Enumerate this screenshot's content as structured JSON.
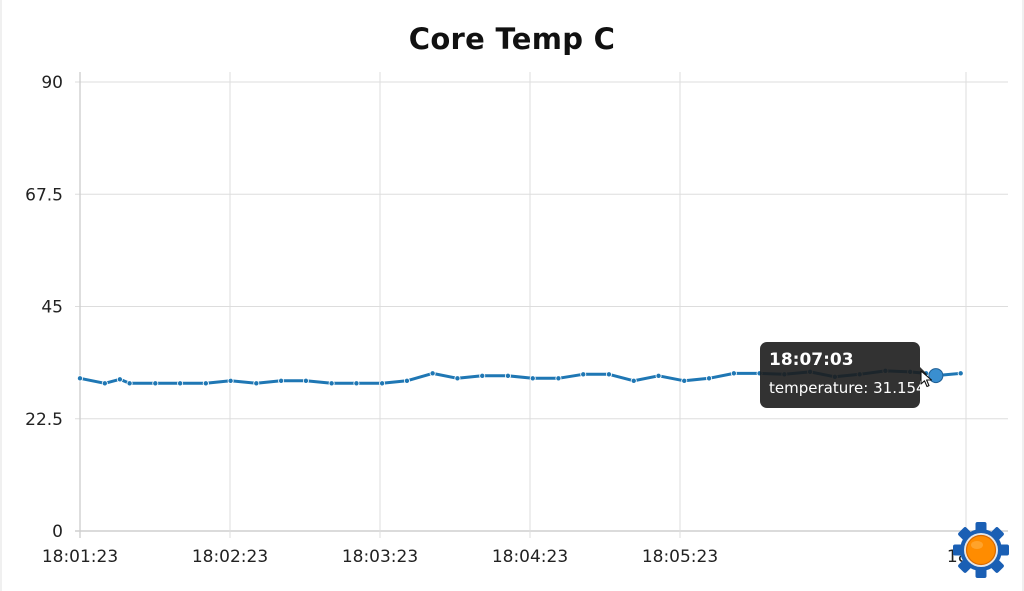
{
  "chart_data": {
    "type": "line",
    "title": "Core Temp C",
    "xlabel": "",
    "ylabel": "",
    "x_tick_labels": [
      "18:01:23",
      "18:02:23",
      "18:03:23",
      "18:04:23",
      "18:05:23",
      "18:0"
    ],
    "y_tick_labels": [
      "0",
      "22.5",
      "45",
      "67.5",
      "90"
    ],
    "y_ticks": [
      0,
      22.5,
      45,
      67.5,
      90
    ],
    "ylim": [
      0,
      90
    ],
    "grid": true,
    "legend": "none",
    "series": [
      {
        "color": "#1f77b4",
        "values": [
          30.6,
          29.6,
          30.4,
          29.6,
          29.6,
          29.6,
          29.6,
          29.6,
          30.1,
          29.6,
          30.1,
          30.1,
          29.6,
          29.6,
          29.6,
          30.1,
          31.6,
          30.6,
          31.1,
          31.1,
          30.6,
          30.6,
          31.4,
          31.4,
          30.1,
          31.1,
          30.1,
          30.6,
          31.6,
          31.6,
          31.4,
          31.9,
          30.9,
          31.4,
          32.1,
          31.9,
          31.6,
          31.4,
          31.154,
          31.6
        ]
      }
    ],
    "x_positions_fraction": [
      0,
      0.028,
      0.045,
      0.056,
      0.085,
      0.113,
      0.142,
      0.142,
      0.17,
      0.199,
      0.227,
      0.255,
      0.284,
      0.312,
      0.341,
      0.369,
      0.398,
      0.426,
      0.454,
      0.483,
      0.511,
      0.54,
      0.568,
      0.597,
      0.625,
      0.653,
      0.682,
      0.71,
      0.738,
      0.767,
      0.795,
      0.824,
      0.852,
      0.88,
      0.909,
      0.937,
      0.955,
      0.966,
      0.966,
      0.994
    ],
    "tooltip": {
      "time": "18:07:03",
      "text": "temperature: 31.154"
    }
  },
  "icons": {
    "settings": "gear-icon",
    "cursor": "cursor-icon"
  },
  "colors": {
    "series": "#1f77b4",
    "gear_outer": "#1a5fb4",
    "gear_inner": "#ff8c00"
  }
}
